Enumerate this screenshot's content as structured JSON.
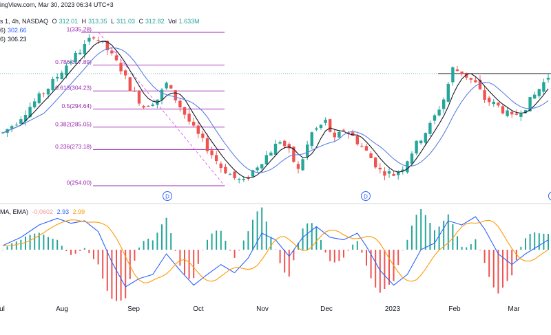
{
  "header": {
    "source_line": "ingView.com, Mar 30, 2023 06:34 UTC+3",
    "symbol_line": "s 1, 4h, NASDAQ",
    "open_label": "O",
    "open": "312.01",
    "high_label": "H",
    "high": "313.35",
    "low_label": "L",
    "low": "311.03",
    "close_label": "C",
    "close": "312.82",
    "vol_label": "Vol",
    "volume": "1.633M",
    "ma1_prefix": "6)",
    "ma1_value": "302.66",
    "ma2_prefix": "6)",
    "ma2_value": "306.23"
  },
  "macd_header": {
    "label": "MA, EMA)",
    "hist": "-0.0602",
    "macd": "2.93",
    "signal": "2.99"
  },
  "colors": {
    "up": "#26a69a",
    "down": "#ef5350",
    "fib": "#9c27b0",
    "ma_fast": "#131722",
    "ma_slow": "#5b7ee5",
    "macd": "#2962ff",
    "signal": "#ff9800",
    "hist_up": "#26a69a",
    "hist_down": "#ef5350"
  },
  "chart_data": {
    "type": "candlestick",
    "x_axis": {
      "labels": [
        "ul",
        "Aug",
        "Sep",
        "Oct",
        "Nov",
        "Dec",
        "2023",
        "Feb",
        "Mar"
      ]
    },
    "fib_levels": [
      {
        "ratio": "1",
        "value": "335.28"
      },
      {
        "ratio": "0.786",
        "value": "317.89"
      },
      {
        "ratio": "0.618",
        "value": "304.23"
      },
      {
        "ratio": "0.5",
        "value": "294.64"
      },
      {
        "ratio": "0.382",
        "value": "285.05"
      },
      {
        "ratio": "0.236",
        "value": "273.18"
      },
      {
        "ratio": "0",
        "value": "254.00"
      }
    ],
    "dividend_markers": [
      "D",
      "D",
      "D"
    ],
    "price_waypoints": [
      [
        0,
        282
      ],
      [
        3,
        288
      ],
      [
        6,
        296
      ],
      [
        10,
        306
      ],
      [
        14,
        318
      ],
      [
        18,
        328
      ],
      [
        20,
        334
      ],
      [
        23,
        326
      ],
      [
        26,
        316
      ],
      [
        28,
        306
      ],
      [
        31,
        296
      ],
      [
        34,
        300
      ],
      [
        36,
        308
      ],
      [
        39,
        296
      ],
      [
        42,
        284
      ],
      [
        45,
        274
      ],
      [
        48,
        264
      ],
      [
        51,
        258
      ],
      [
        53,
        256
      ],
      [
        55,
        262
      ],
      [
        58,
        270
      ],
      [
        61,
        278
      ],
      [
        63,
        272
      ],
      [
        65,
        262
      ],
      [
        68,
        282
      ],
      [
        71,
        288
      ],
      [
        73,
        278
      ],
      [
        75,
        284
      ],
      [
        77,
        280
      ],
      [
        80,
        272
      ],
      [
        83,
        262
      ],
      [
        86,
        260
      ],
      [
        88,
        264
      ],
      [
        91,
        276
      ],
      [
        94,
        286
      ],
      [
        97,
        300
      ],
      [
        99,
        316
      ],
      [
        101,
        314
      ],
      [
        104,
        308
      ],
      [
        106,
        300
      ],
      [
        109,
        296
      ],
      [
        112,
        290
      ],
      [
        115,
        296
      ],
      [
        117,
        302
      ],
      [
        120,
        312
      ]
    ],
    "macd_waypoints": [
      [
        0,
        0.5
      ],
      [
        4,
        1.5
      ],
      [
        8,
        3.0
      ],
      [
        12,
        3.8
      ],
      [
        15,
        3.2
      ],
      [
        18,
        3.5
      ],
      [
        21,
        2.2
      ],
      [
        24,
        -1.5
      ],
      [
        27,
        -4.5
      ],
      [
        30,
        -3.5
      ],
      [
        33,
        -3.0
      ],
      [
        36,
        -0.5
      ],
      [
        39,
        -2.5
      ],
      [
        42,
        -4.3
      ],
      [
        45,
        -3.0
      ],
      [
        48,
        -1.8
      ],
      [
        51,
        -2.8
      ],
      [
        54,
        -1.0
      ],
      [
        57,
        2.0
      ],
      [
        60,
        1.2
      ],
      [
        63,
        -0.8
      ],
      [
        66,
        1.5
      ],
      [
        69,
        2.8
      ],
      [
        72,
        1.5
      ],
      [
        75,
        1.2
      ],
      [
        78,
        2.0
      ],
      [
        80,
        0.4
      ],
      [
        83,
        -2.5
      ],
      [
        86,
        -4.3
      ],
      [
        89,
        -3.0
      ],
      [
        92,
        0.0
      ],
      [
        95,
        0.8
      ],
      [
        98,
        3.5
      ],
      [
        101,
        3.0
      ],
      [
        104,
        4.0
      ],
      [
        106,
        2.5
      ],
      [
        109,
        -0.5
      ],
      [
        112,
        -1.8
      ],
      [
        115,
        -0.5
      ],
      [
        118,
        0.5
      ],
      [
        120,
        1.2
      ]
    ]
  }
}
